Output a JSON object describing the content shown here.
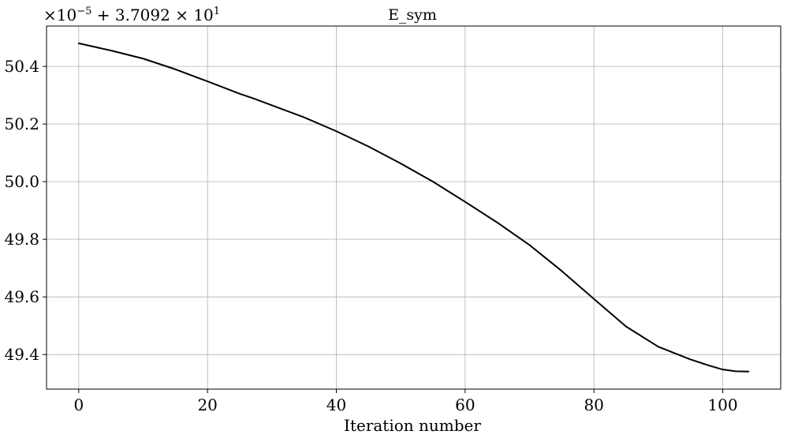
{
  "chart_data": {
    "type": "line",
    "title": "E_sym",
    "xlabel": "Iteration number",
    "ylabel": "",
    "offset_label": {
      "prefix": "×10",
      "exponent": "−5",
      "middle": " + 3.7092 × 10",
      "exponent2": "1"
    },
    "xlim": [
      -5,
      109
    ],
    "ylim": [
      49.28,
      50.54
    ],
    "xticks": [
      0,
      20,
      40,
      60,
      80,
      100
    ],
    "xtick_labels": [
      "0",
      "20",
      "40",
      "60",
      "80",
      "100"
    ],
    "yticks": [
      49.4,
      49.6,
      49.8,
      50.0,
      50.2,
      50.4
    ],
    "ytick_labels": [
      "49.4",
      "49.6",
      "49.8",
      "50.0",
      "50.2",
      "50.4"
    ],
    "grid": true,
    "line_color": "#000000",
    "series": [
      {
        "x": [
          0,
          5,
          10,
          15,
          20,
          25,
          27,
          30,
          35,
          40,
          45,
          50,
          55,
          60,
          65,
          70,
          75,
          80,
          85,
          90,
          95,
          98,
          100,
          102,
          104
        ],
        "values": [
          50.48,
          50.455,
          50.427,
          50.39,
          50.348,
          50.305,
          50.29,
          50.265,
          50.223,
          50.175,
          50.122,
          50.063,
          50.0,
          49.93,
          49.858,
          49.78,
          49.69,
          49.593,
          49.497,
          49.427,
          49.383,
          49.361,
          49.348,
          49.342,
          49.341
        ]
      }
    ]
  }
}
